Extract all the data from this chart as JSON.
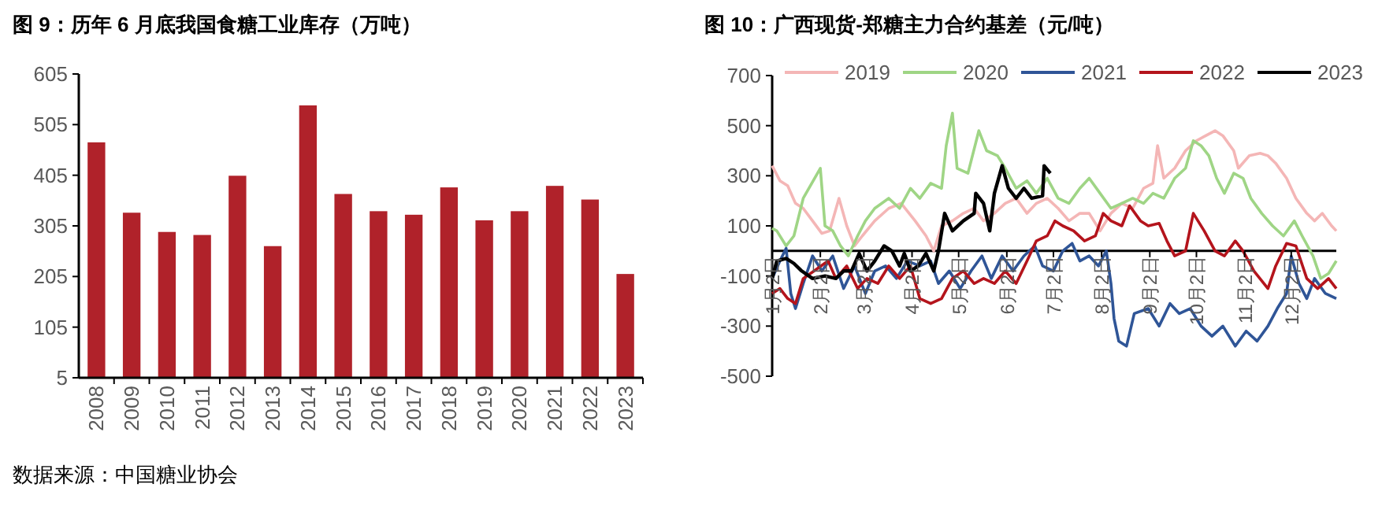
{
  "chart_data": [
    {
      "type": "bar",
      "title": "图 9：历年 6 月底我国食糖工业库存（万吨）",
      "categories": [
        "2008",
        "2009",
        "2010",
        "2011",
        "2012",
        "2013",
        "2014",
        "2015",
        "2016",
        "2017",
        "2018",
        "2019",
        "2020",
        "2021",
        "2022",
        "2023"
      ],
      "values": [
        470,
        331,
        293,
        287,
        404,
        265,
        543,
        368,
        334,
        327,
        381,
        316,
        334,
        384,
        357,
        210
      ],
      "color": "#b0222a",
      "ylim": [
        5,
        605
      ],
      "yticks": [
        5,
        105,
        205,
        305,
        405,
        505,
        605
      ],
      "grid": false,
      "annotations": [
        "数据来源：中国糖业协会"
      ]
    },
    {
      "type": "line",
      "title": "图 10：广西现货-郑糖主力合约基差（元/吨）",
      "ylim": [
        -500,
        700
      ],
      "yticks": [
        -500,
        -300,
        -100,
        100,
        300,
        500,
        700
      ],
      "xlim": [
        "--01-02",
        "--12-31"
      ],
      "xticks": [
        {
          "value": "--01-02",
          "label": "1月2日"
        },
        {
          "value": "--02-02",
          "label": "2月2日"
        },
        {
          "value": "--03-02",
          "label": "3月2日"
        },
        {
          "value": "--04-02",
          "label": "4月2日"
        },
        {
          "value": "--05-02",
          "label": "5月2日"
        },
        {
          "value": "--06-02",
          "label": "6月2日"
        },
        {
          "value": "--07-02",
          "label": "7月2日"
        },
        {
          "value": "--08-02",
          "label": "8月2日"
        },
        {
          "value": "--09-02",
          "label": "9月2日"
        },
        {
          "value": "--10-02",
          "label": "10月2日"
        },
        {
          "value": "--11-02",
          "label": "11月2日"
        },
        {
          "value": "--12-02",
          "label": "12月2日"
        }
      ],
      "grid": false,
      "legend": "top",
      "marker": "none",
      "line_style": "solid",
      "series": [
        {
          "name": "2019",
          "color": "#f4b6b6",
          "x": [
            "--01-02",
            "--01-07",
            "--01-12",
            "--01-17",
            "--01-22",
            "--01-28",
            "--02-03",
            "--02-08",
            "--02-14",
            "--02-19",
            "--02-24",
            "--03-01",
            "--03-09",
            "--03-18",
            "--03-26",
            "--04-04",
            "--04-11",
            "--04-16",
            "--04-21",
            "--04-28",
            "--05-05",
            "--05-12",
            "--05-18",
            "--05-25",
            "--06-01",
            "--06-08",
            "--06-15",
            "--06-21",
            "--06-28",
            "--07-05",
            "--07-12",
            "--07-19",
            "--07-25",
            "--08-01",
            "--08-08",
            "--08-15",
            "--08-22",
            "--08-29",
            "--09-04",
            "--09-07",
            "--09-11",
            "--09-18",
            "--09-25",
            "--10-02",
            "--10-08",
            "--10-14",
            "--10-19",
            "--10-26",
            "--10-29",
            "--11-05",
            "--11-12",
            "--11-17",
            "--11-22",
            "--11-29",
            "--12-05",
            "--12-12",
            "--12-17",
            "--12-22",
            "--12-28",
            "--12-31"
          ],
          "values": [
            340,
            280,
            260,
            190,
            170,
            120,
            70,
            80,
            210,
            100,
            20,
            60,
            120,
            170,
            190,
            120,
            60,
            0,
            100,
            120,
            150,
            170,
            120,
            150,
            190,
            210,
            150,
            190,
            210,
            170,
            120,
            150,
            150,
            80,
            150,
            190,
            170,
            250,
            270,
            420,
            290,
            330,
            400,
            440,
            460,
            480,
            460,
            400,
            330,
            380,
            390,
            380,
            350,
            290,
            210,
            150,
            120,
            150,
            100,
            80
          ]
        },
        {
          "name": "2020",
          "color": "#9fd585",
          "x": [
            "--01-02",
            "--01-05",
            "--01-11",
            "--01-16",
            "--01-22",
            "--02-02",
            "--02-05",
            "--02-10",
            "--02-15",
            "--02-20",
            "--02-26",
            "--03-03",
            "--03-09",
            "--03-18",
            "--03-25",
            "--04-01",
            "--04-07",
            "--04-14",
            "--04-21",
            "--04-24",
            "--04-28",
            "--05-01",
            "--05-08",
            "--05-15",
            "--05-20",
            "--05-27",
            "--06-01",
            "--06-08",
            "--06-15",
            "--06-21",
            "--06-28",
            "--07-05",
            "--07-12",
            "--07-19",
            "--07-25",
            "--08-01",
            "--08-08",
            "--08-15",
            "--08-22",
            "--08-29",
            "--09-04",
            "--09-11",
            "--09-18",
            "--09-25",
            "--09-30",
            "--10-05",
            "--10-10",
            "--10-15",
            "--10-20",
            "--10-26",
            "--11-01",
            "--11-06",
            "--11-13",
            "--11-20",
            "--11-27",
            "--12-04",
            "--12-09",
            "--12-16",
            "--12-21",
            "--12-26",
            "--12-31"
          ],
          "values": [
            90,
            80,
            20,
            60,
            210,
            330,
            100,
            80,
            20,
            -20,
            60,
            120,
            170,
            210,
            170,
            250,
            210,
            270,
            250,
            420,
            550,
            330,
            310,
            480,
            400,
            380,
            330,
            250,
            280,
            230,
            290,
            210,
            190,
            250,
            290,
            230,
            170,
            190,
            210,
            190,
            230,
            210,
            290,
            330,
            440,
            420,
            380,
            290,
            230,
            310,
            290,
            210,
            150,
            100,
            60,
            120,
            60,
            -20,
            -110,
            -90,
            -40
          ]
        },
        {
          "name": "2021",
          "color": "#2f5597",
          "x": [
            "--01-02",
            "--01-07",
            "--01-11",
            "--01-14",
            "--01-17",
            "--01-22",
            "--01-28",
            "--02-03",
            "--02-10",
            "--02-17",
            "--02-24",
            "--03-03",
            "--03-09",
            "--03-16",
            "--03-23",
            "--03-30",
            "--04-07",
            "--04-14",
            "--04-19",
            "--04-26",
            "--05-03",
            "--05-10",
            "--05-17",
            "--05-23",
            "--05-30",
            "--06-06",
            "--06-13",
            "--06-20",
            "--06-25",
            "--07-02",
            "--07-08",
            "--07-14",
            "--07-19",
            "--07-25",
            "--07-31",
            "--08-05",
            "--08-08",
            "--08-10",
            "--08-13",
            "--08-18",
            "--08-23",
            "--09-01",
            "--09-08",
            "--09-15",
            "--09-21",
            "--09-28",
            "--10-05",
            "--10-12",
            "--10-19",
            "--10-27",
            "--11-03",
            "--11-10",
            "--11-17",
            "--11-23",
            "--11-29",
            "--12-02",
            "--12-07",
            "--12-12",
            "--12-17",
            "--12-24",
            "--12-31"
          ],
          "values": [
            -110,
            -40,
            10,
            -170,
            -230,
            -130,
            -20,
            -80,
            -20,
            -150,
            -60,
            -170,
            -80,
            -60,
            -110,
            -40,
            -60,
            -40,
            -130,
            -80,
            -150,
            -80,
            -20,
            -110,
            -20,
            -80,
            -20,
            20,
            -60,
            -80,
            0,
            30,
            -40,
            -20,
            -60,
            0,
            -130,
            -270,
            -360,
            -380,
            -250,
            -230,
            -300,
            -210,
            -250,
            -230,
            -300,
            -340,
            -300,
            -380,
            -320,
            -360,
            -300,
            -230,
            -170,
            -20,
            -130,
            -190,
            -110,
            -170,
            -190
          ]
        },
        {
          "name": "2022",
          "color": "#b4141c",
          "x": [
            "--01-02",
            "--01-07",
            "--01-12",
            "--01-17",
            "--01-22",
            "--01-29",
            "--02-07",
            "--02-12",
            "--02-19",
            "--02-26",
            "--03-04",
            "--03-11",
            "--03-18",
            "--03-25",
            "--04-01",
            "--04-07",
            "--04-14",
            "--04-21",
            "--04-28",
            "--05-05",
            "--05-12",
            "--05-18",
            "--05-25",
            "--06-01",
            "--06-08",
            "--06-15",
            "--06-21",
            "--06-28",
            "--07-03",
            "--07-08",
            "--07-15",
            "--07-22",
            "--07-29",
            "--08-03",
            "--08-08",
            "--08-15",
            "--08-20",
            "--08-27",
            "--09-01",
            "--09-08",
            "--09-13",
            "--09-18",
            "--09-25",
            "--09-30",
            "--10-07",
            "--10-14",
            "--10-20",
            "--10-27",
            "--11-01",
            "--11-08",
            "--11-17",
            "--11-22",
            "--11-29",
            "--12-05",
            "--12-12",
            "--12-19",
            "--12-26",
            "--12-31"
          ],
          "values": [
            -170,
            -150,
            -190,
            -210,
            -110,
            -80,
            -40,
            -110,
            -60,
            -150,
            -110,
            -130,
            -60,
            -110,
            -60,
            -190,
            -210,
            -190,
            -110,
            -80,
            -130,
            -110,
            -130,
            -80,
            -130,
            -40,
            40,
            60,
            120,
            100,
            80,
            40,
            60,
            150,
            120,
            100,
            180,
            120,
            100,
            110,
            40,
            -20,
            0,
            150,
            80,
            0,
            -20,
            40,
            0,
            -80,
            -150,
            -60,
            30,
            20,
            -110,
            -150,
            -110,
            -150
          ]
        },
        {
          "name": "2023",
          "color": "#000000",
          "x": [
            "--01-02",
            "--01-05",
            "--01-11",
            "--01-16",
            "--01-21",
            "--01-28",
            "--02-05",
            "--02-12",
            "--02-17",
            "--02-22",
            "--02-27",
            "--03-04",
            "--03-09",
            "--03-15",
            "--03-20",
            "--03-25",
            "--03-28",
            "--04-01",
            "--04-06",
            "--04-11",
            "--04-16",
            "--04-19",
            "--04-23",
            "--04-28",
            "--05-05",
            "--05-12",
            "--05-13",
            "--05-18",
            "--05-22",
            "--05-25",
            "--05-30",
            "--06-03",
            "--06-08",
            "--06-13",
            "--06-18",
            "--06-25",
            "--06-26",
            "--06-30"
          ],
          "values": [
            -110,
            -40,
            -30,
            -50,
            -80,
            -110,
            -100,
            -110,
            -80,
            -80,
            -10,
            -80,
            -40,
            20,
            0,
            -60,
            -10,
            -80,
            -60,
            -10,
            -80,
            0,
            150,
            80,
            120,
            150,
            230,
            190,
            80,
            230,
            340,
            250,
            210,
            250,
            210,
            220,
            340,
            310
          ]
        }
      ]
    }
  ]
}
